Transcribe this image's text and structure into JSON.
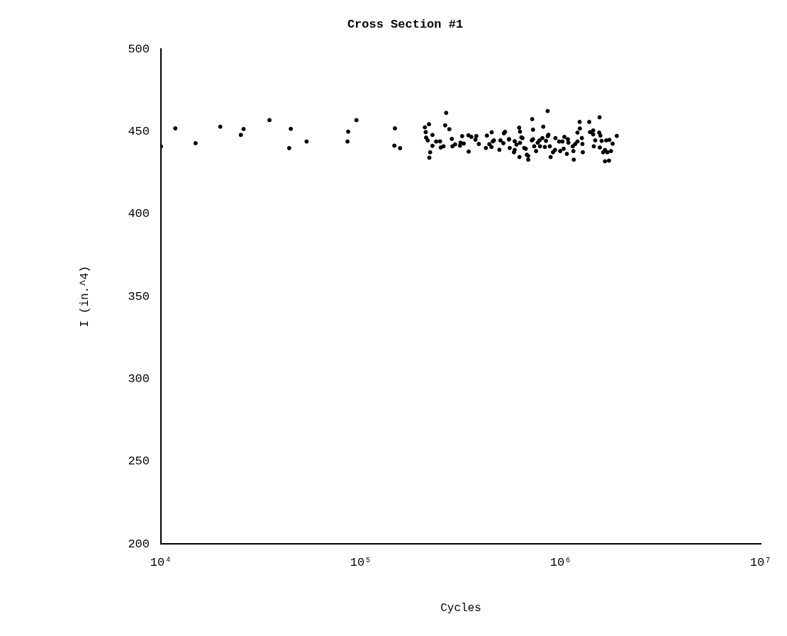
{
  "chart_data": {
    "type": "scatter",
    "title": "Cross Section #1",
    "xlabel": "Cycles",
    "ylabel": "I (in.^4)",
    "log": "x",
    "xlim": [
      10000,
      10000000
    ],
    "xticks": [
      {
        "value": 10000,
        "label": "10⁴"
      },
      {
        "value": 100000,
        "label": "10⁵"
      },
      {
        "value": 1000000,
        "label": "10⁶"
      },
      {
        "value": 10000000,
        "label": "10⁷"
      }
    ],
    "ylim": [
      200,
      500
    ],
    "yticks": [
      200,
      250,
      300,
      350,
      400,
      450,
      500
    ],
    "grid": false,
    "legend": false,
    "marker": "circle",
    "series": [
      {
        "color": "#000000",
        "x": [
          10000,
          11800,
          14900,
          19800,
          25100,
          25900,
          34900,
          44600,
          43800,
          53500,
          85700,
          86400,
          95000,
          148000,
          147000,
          157000,
          209000,
          211000,
          219000,
          212000,
          216000,
          228000,
          222000,
          220000,
          228000,
          238000,
          249000,
          251000,
          259000,
          267000,
          264000,
          277000,
          285000,
          287000,
          296000,
          315000,
          313000,
          321000,
          327000,
          346000,
          345000,
          357000,
          378000,
          374000,
          389000,
          422000,
          427000,
          439000,
          450000,
          451000,
          463000,
          457000,
          493000,
          499000,
          516000,
          526000,
          519000,
          551000,
          550000,
          555000,
          588000,
          588000,
          600000,
          583000,
          621000,
          619000,
          625000,
          643000,
          635000,
          625000,
          656000,
          668000,
          676000,
          686000,
          687000,
          716000,
          719000,
          726000,
          726000,
          736000,
          752000,
          766000,
          782000,
          787000,
          809000,
          817000,
          832000,
          843000,
          861000,
          859000,
          867000,
          881000,
          889000,
          914000,
          935000,
          940000,
          980000,
          993000,
          1019000,
          1033000,
          1042000,
          1072000,
          1084000,
          1091000,
          1148000,
          1161000,
          1156000,
          1180000,
          1211000,
          1242000,
          1245000,
          1211000,
          1274000,
          1282000,
          1288000,
          1387000,
          1400000,
          1452000,
          1452000,
          1462000,
          1486000,
          1563000,
          1556000,
          1578000,
          1600000,
          1567000,
          1629000,
          1663000,
          1687000,
          1663000,
          1742000,
          1710000,
          1782000,
          1750000,
          1816000,
          1905000
        ],
        "values": [
          441,
          452,
          443,
          453,
          448,
          451.6,
          457,
          451.7,
          440,
          444,
          444,
          450,
          457,
          452,
          441.5,
          440,
          452.6,
          449.7,
          454.5,
          446.4,
          444.7,
          448,
          437.5,
          434.2,
          441.4,
          444,
          444.1,
          440.4,
          441.1,
          461.4,
          453.8,
          451.5,
          445.6,
          441.1,
          442.3,
          443.3,
          441.5,
          447.3,
          442.8,
          437.9,
          447.8,
          446.8,
          447.3,
          445.1,
          442.5,
          440.1,
          447.6,
          442.4,
          440.7,
          449.6,
          444.7,
          444.1,
          439,
          444.7,
          443,
          449.9,
          449,
          445.5,
          445.2,
          440.1,
          438.9,
          444.2,
          442.1,
          437.5,
          434.6,
          452.4,
          450,
          446.1,
          446.5,
          443.2,
          440.1,
          439.6,
          436,
          435.3,
          433,
          444.7,
          457.6,
          451.2,
          445.4,
          441.1,
          438.2,
          443.3,
          444.7,
          441.1,
          446.1,
          453,
          440.7,
          444.4,
          447.3,
          462.5,
          448.1,
          441.1,
          434.6,
          437.5,
          438.9,
          446.1,
          444,
          438.2,
          444,
          439.6,
          446.8,
          436.5,
          445.4,
          443.3,
          441.1,
          433,
          438.2,
          442.5,
          449.4,
          455.9,
          451.9,
          444,
          446.1,
          442.5,
          437.5,
          455.9,
          449.7,
          450.7,
          448.3,
          441.1,
          444.7,
          458.7,
          449.4,
          447.6,
          444.4,
          440.4,
          437.5,
          438.9,
          444.7,
          432,
          432.4,
          437.5,
          438.2,
          445,
          442.7,
          447.4
        ]
      }
    ]
  }
}
